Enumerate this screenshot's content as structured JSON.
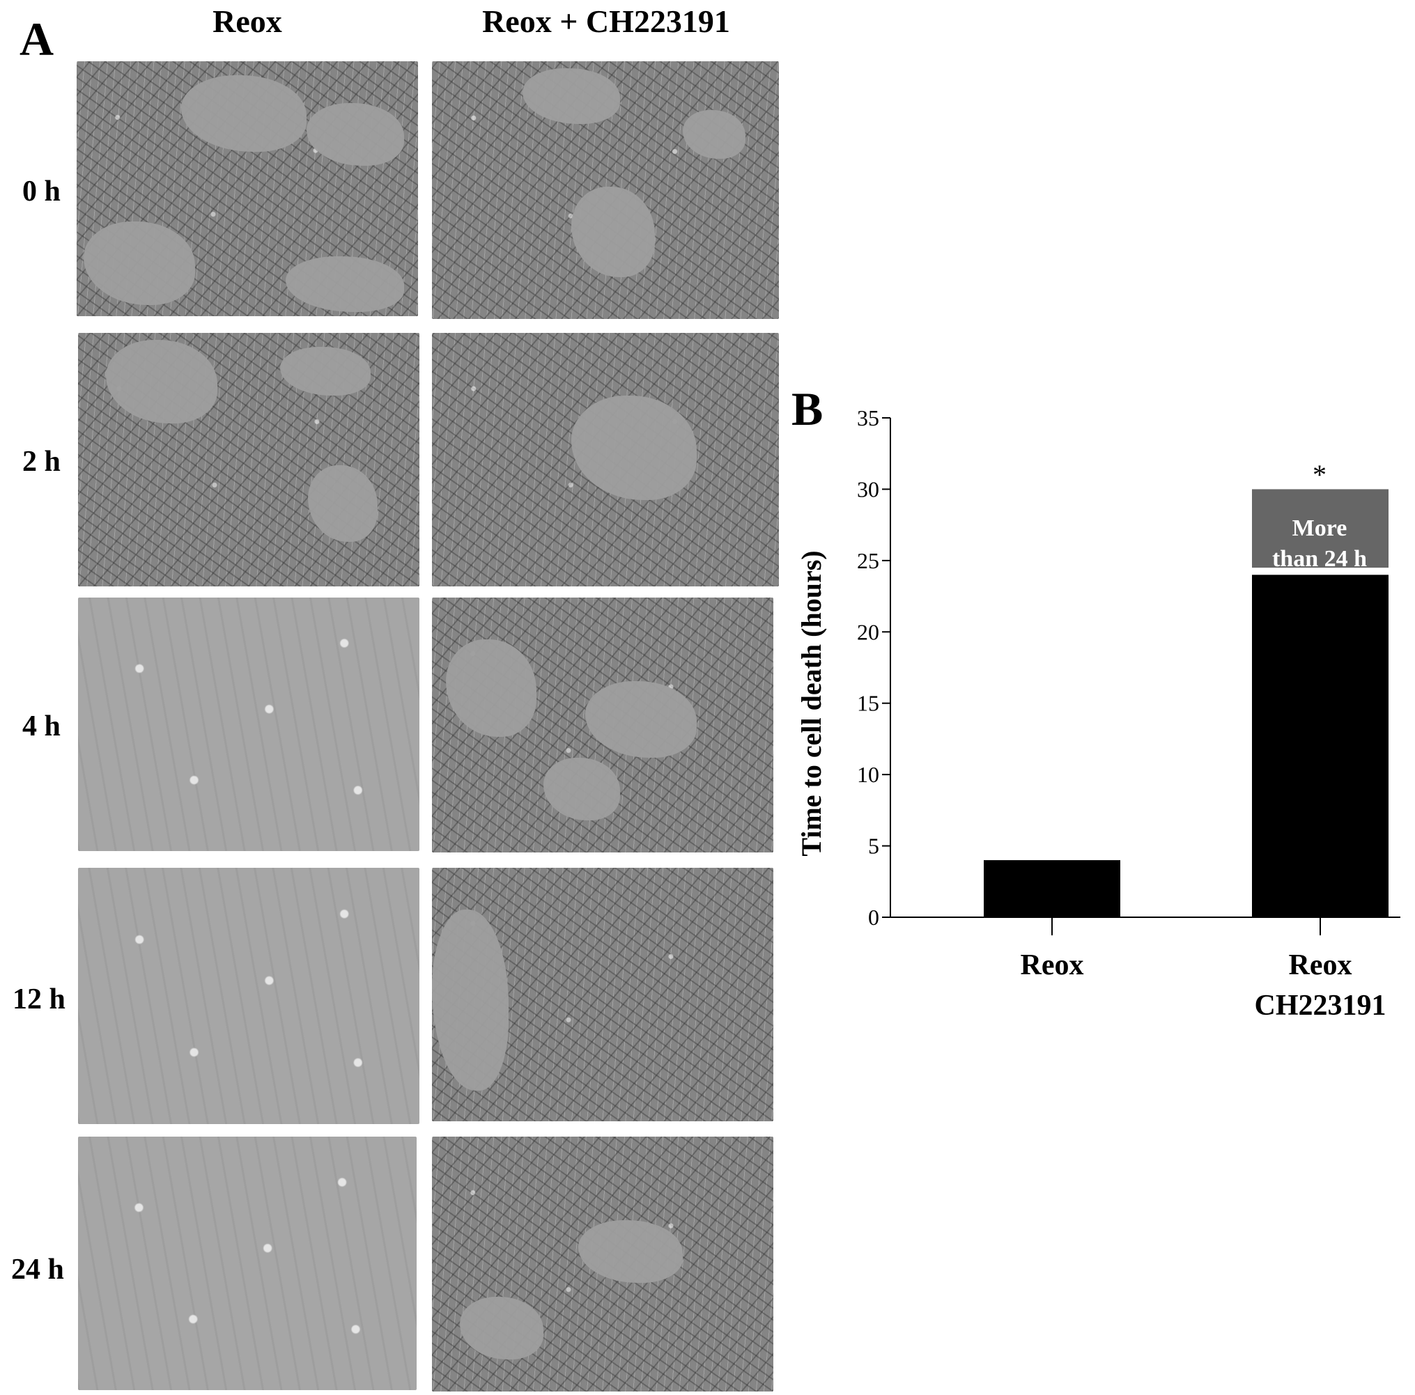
{
  "panel_a": {
    "letter": "A",
    "columns": [
      "Reox",
      "Reox + CH223191"
    ],
    "rows": [
      "0 h",
      "2 h",
      "4 h",
      "12 h",
      "24 h"
    ],
    "image_states": [
      [
        "confluent",
        "confluent"
      ],
      [
        "confluent",
        "confluent"
      ],
      [
        "sparse",
        "confluent"
      ],
      [
        "sparse",
        "confluent"
      ],
      [
        "sparse",
        "confluent"
      ]
    ]
  },
  "panel_b": {
    "letter": "B",
    "annotation_line1": "More",
    "annotation_line2": "than 24 h",
    "significance": "*"
  },
  "chart_data": {
    "type": "bar",
    "categories": [
      "Reox",
      "Reox CH223191"
    ],
    "category_label_lines": [
      [
        "Reox"
      ],
      [
        "Reox",
        "CH223191"
      ]
    ],
    "values": [
      4,
      24
    ],
    "ylabel": "Time to cell death (hours)",
    "ylim": [
      0,
      35
    ],
    "yticks": [
      0,
      5,
      10,
      15,
      20,
      25,
      30,
      35
    ],
    "bar_color": "#000000",
    "annotation_box": {
      "category": "Reox CH223191",
      "from": 24.5,
      "to": 30,
      "color": "#666666"
    },
    "grid": false
  }
}
